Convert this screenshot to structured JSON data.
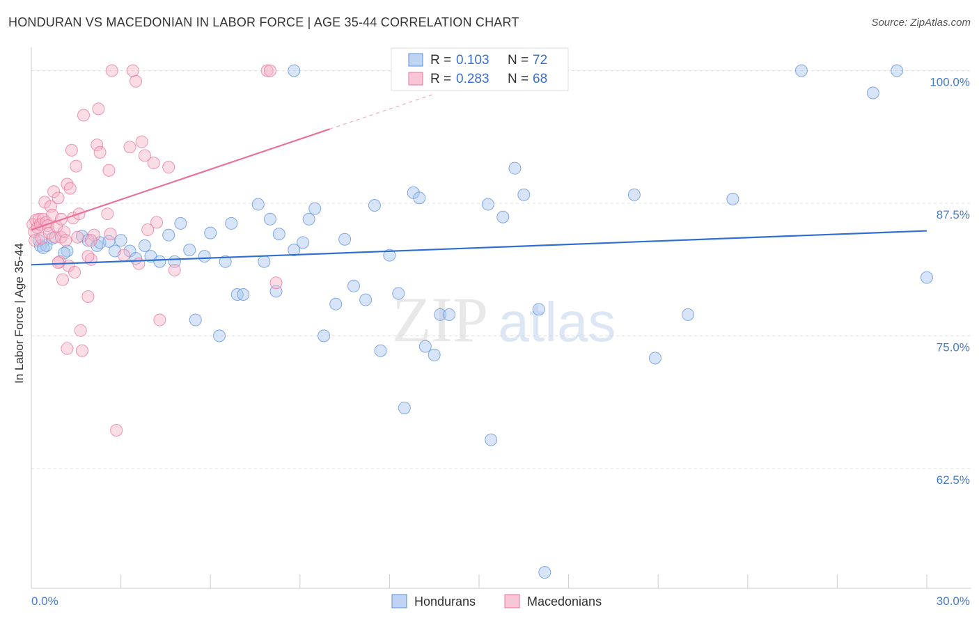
{
  "title": "HONDURAN VS MACEDONIAN IN LABOR FORCE | AGE 35-44 CORRELATION CHART",
  "source": "Source: ZipAtlas.com",
  "watermark": {
    "zip": "ZIP",
    "atlas": "atlas"
  },
  "chart_data": {
    "type": "scatter",
    "ylabel": "In Labor Force | Age 35-44",
    "xlim": [
      0,
      30
    ],
    "ylim": [
      51.2,
      102.2
    ],
    "x_tick_labels": [
      {
        "value": 0,
        "label": "0.0%"
      },
      {
        "value": 30,
        "label": "30.0%"
      }
    ],
    "y_ticks": [
      62.5,
      75.0,
      87.5,
      100.0
    ],
    "y_tick_labels": [
      "62.5%",
      "75.0%",
      "87.5%",
      "100.0%"
    ],
    "x_minor_ticks": [
      0,
      3,
      6,
      9,
      12,
      15,
      18,
      21,
      24,
      27,
      30
    ],
    "grid": "horizontal dashed",
    "legend_position": "top-center",
    "series": [
      {
        "name": "Hondurans",
        "color": "#5b8fd9",
        "fill": "#a9c6ef",
        "trend_color": "#2f6fcf",
        "R": "0.103",
        "N": "72",
        "trend": {
          "x0": 0,
          "y0": 81.7,
          "x1": 30,
          "y1": 84.9
        },
        "points": [
          [
            0.3,
            83.5
          ],
          [
            0.5,
            83.5
          ],
          [
            0.7,
            84.2
          ],
          [
            1.2,
            83.0
          ],
          [
            1.7,
            84.4
          ],
          [
            1.9,
            84.0
          ],
          [
            2.2,
            83.5
          ],
          [
            2.3,
            83.8
          ],
          [
            2.8,
            83.0
          ],
          [
            3.0,
            84.0
          ],
          [
            3.3,
            83.0
          ],
          [
            3.5,
            82.3
          ],
          [
            3.8,
            83.5
          ],
          [
            4.0,
            82.5
          ],
          [
            4.3,
            82.0
          ],
          [
            4.6,
            84.5
          ],
          [
            4.8,
            82.0
          ],
          [
            5.0,
            85.6
          ],
          [
            5.3,
            83.1
          ],
          [
            5.5,
            76.5
          ],
          [
            5.8,
            82.5
          ],
          [
            6.0,
            84.7
          ],
          [
            6.3,
            75.0
          ],
          [
            6.5,
            82.0
          ],
          [
            6.7,
            85.6
          ],
          [
            6.9,
            78.9
          ],
          [
            7.1,
            78.9
          ],
          [
            7.6,
            87.4
          ],
          [
            7.8,
            82.0
          ],
          [
            8.0,
            86.0
          ],
          [
            8.2,
            79.2
          ],
          [
            8.3,
            84.6
          ],
          [
            8.8,
            83.1
          ],
          [
            9.1,
            83.8
          ],
          [
            9.3,
            86.0
          ],
          [
            9.5,
            87.0
          ],
          [
            9.8,
            75.0
          ],
          [
            10.2,
            78.0
          ],
          [
            10.5,
            84.1
          ],
          [
            10.8,
            79.7
          ],
          [
            11.2,
            78.4
          ],
          [
            11.5,
            87.3
          ],
          [
            11.7,
            73.6
          ],
          [
            12.0,
            82.6
          ],
          [
            12.3,
            79.0
          ],
          [
            12.5,
            68.2
          ],
          [
            12.8,
            88.5
          ],
          [
            13.0,
            88.0
          ],
          [
            13.2,
            74.0
          ],
          [
            13.5,
            73.2
          ],
          [
            13.7,
            77.0
          ],
          [
            14.0,
            77.0
          ],
          [
            15.3,
            87.4
          ],
          [
            15.4,
            65.2
          ],
          [
            15.8,
            86.2
          ],
          [
            16.2,
            90.8
          ],
          [
            16.5,
            88.3
          ],
          [
            17.0,
            77.5
          ],
          [
            17.2,
            52.7
          ],
          [
            8.8,
            100.0
          ],
          [
            20.2,
            88.3
          ],
          [
            20.9,
            72.9
          ],
          [
            22.0,
            77.0
          ],
          [
            23.5,
            87.9
          ],
          [
            25.8,
            100.0
          ],
          [
            28.2,
            97.9
          ],
          [
            29.0,
            100.0
          ],
          [
            30.0,
            80.5
          ],
          [
            0.25,
            84.0
          ],
          [
            0.4,
            83.3
          ],
          [
            1.1,
            82.8
          ],
          [
            2.6,
            83.9
          ]
        ]
      },
      {
        "name": "Macedonians",
        "color": "#e8769a",
        "fill": "#f6b3c8",
        "trend_color": "#e8709a",
        "R": "0.283",
        "N": "68",
        "trend": {
          "x0": 0,
          "y0": 85.0,
          "x1": 10,
          "y1": 94.5,
          "dash_x1": 13.5,
          "dash_y1": 97.8
        },
        "points": [
          [
            0.05,
            85.5
          ],
          [
            0.1,
            84.8
          ],
          [
            0.12,
            84.0
          ],
          [
            0.15,
            85.9
          ],
          [
            0.2,
            85.2
          ],
          [
            0.25,
            86.0
          ],
          [
            0.3,
            85.5
          ],
          [
            0.35,
            84.2
          ],
          [
            0.4,
            86.0
          ],
          [
            0.45,
            87.6
          ],
          [
            0.5,
            85.7
          ],
          [
            0.55,
            85.4
          ],
          [
            0.6,
            84.7
          ],
          [
            0.65,
            87.2
          ],
          [
            0.7,
            86.4
          ],
          [
            0.75,
            88.6
          ],
          [
            0.8,
            84.3
          ],
          [
            0.85,
            85.3
          ],
          [
            0.9,
            88.0
          ],
          [
            0.95,
            82.0
          ],
          [
            1.0,
            84.3
          ],
          [
            1.05,
            80.3
          ],
          [
            1.1,
            84.8
          ],
          [
            1.15,
            84.0
          ],
          [
            1.2,
            89.3
          ],
          [
            1.25,
            81.6
          ],
          [
            1.3,
            88.9
          ],
          [
            1.35,
            92.5
          ],
          [
            1.4,
            86.1
          ],
          [
            1.45,
            81.0
          ],
          [
            1.5,
            91.0
          ],
          [
            1.55,
            84.3
          ],
          [
            1.6,
            86.5
          ],
          [
            1.65,
            75.5
          ],
          [
            1.7,
            73.6
          ],
          [
            1.75,
            95.8
          ],
          [
            1.9,
            78.7
          ],
          [
            2.0,
            82.2
          ],
          [
            2.1,
            84.5
          ],
          [
            2.2,
            93.0
          ],
          [
            2.25,
            96.4
          ],
          [
            2.3,
            92.3
          ],
          [
            2.55,
            86.5
          ],
          [
            2.6,
            90.6
          ],
          [
            2.65,
            84.6
          ],
          [
            2.7,
            100.0
          ],
          [
            2.85,
            66.1
          ],
          [
            3.1,
            82.6
          ],
          [
            3.3,
            92.8
          ],
          [
            3.4,
            100.0
          ],
          [
            3.5,
            99.0
          ],
          [
            3.6,
            81.8
          ],
          [
            3.7,
            93.3
          ],
          [
            3.8,
            92.0
          ],
          [
            3.9,
            85.0
          ],
          [
            4.1,
            91.3
          ],
          [
            4.2,
            85.7
          ],
          [
            4.3,
            76.5
          ],
          [
            4.6,
            90.9
          ],
          [
            4.8,
            81.2
          ],
          [
            7.9,
            100.0
          ],
          [
            8.0,
            100.0
          ],
          [
            8.2,
            80.0
          ],
          [
            1.2,
            73.8
          ],
          [
            0.9,
            81.9
          ],
          [
            1.0,
            86.0
          ],
          [
            1.9,
            82.5
          ],
          [
            2.0,
            84.0
          ]
        ]
      }
    ]
  },
  "legend": {
    "r_label": "R =",
    "n_label": "N =",
    "bottom_items": [
      "Hondurans",
      "Macedonians"
    ]
  },
  "colors": {
    "grid": "#dddddd",
    "axis": "#cccccc",
    "tick_label": "#4a7cc7",
    "value_text": "#3a6fd0"
  }
}
